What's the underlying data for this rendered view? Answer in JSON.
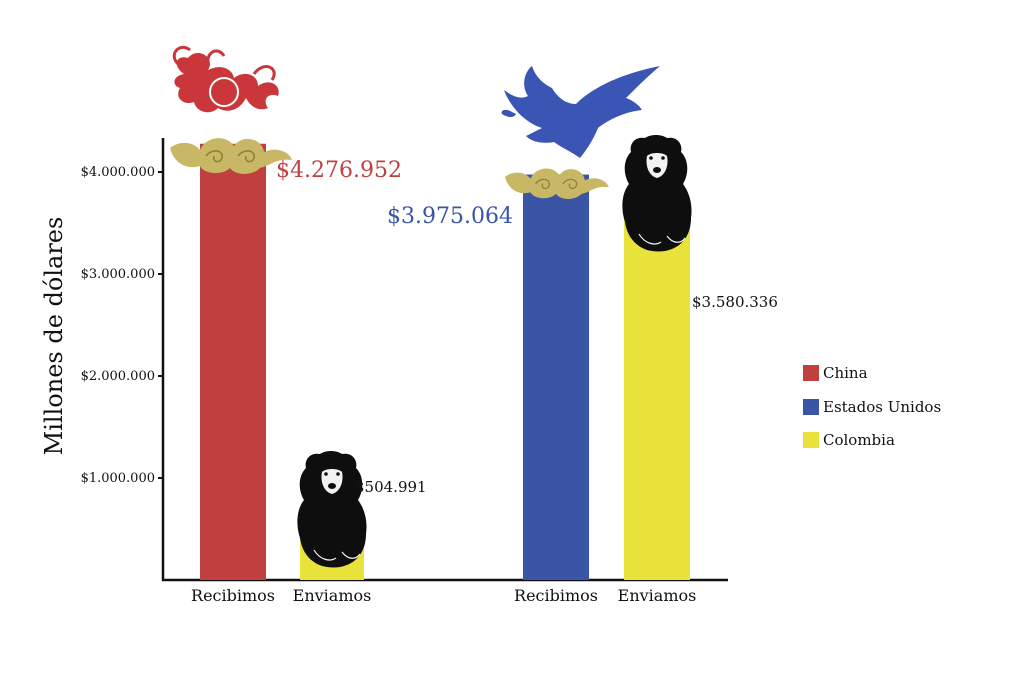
{
  "chart_data": {
    "type": "bar",
    "ylabel": "Millones de dólares",
    "yticks": [
      {
        "value": 1000000,
        "label": "$1.000.000"
      },
      {
        "value": 2000000,
        "label": "$2.000.000"
      },
      {
        "value": 3000000,
        "label": "$3.000.000"
      },
      {
        "value": 4000000,
        "label": "$4.000.000"
      }
    ],
    "ylim": [
      0,
      4276952
    ],
    "bars": [
      {
        "group": 1,
        "category": "Recibimos",
        "series": "China",
        "value": 4276952,
        "label": "$4.276.952",
        "color": "#c0403f"
      },
      {
        "group": 1,
        "category": "Enviamos",
        "series": "Colombia",
        "value": 504991,
        "label": "$504.991",
        "color": "#e8e23a"
      },
      {
        "group": 2,
        "category": "Recibimos",
        "series": "Estados Unidos",
        "value": 3975064,
        "label": "$3.975.064",
        "color": "#3a55a6"
      },
      {
        "group": 2,
        "category": "Enviamos",
        "series": "Colombia",
        "value": 3580336,
        "label": "$3.580.336",
        "color": "#e8e23a"
      }
    ],
    "legend": {
      "placement": "right",
      "items": [
        {
          "name": "China",
          "color": "#c0403f"
        },
        {
          "name": "Estados Unidos",
          "color": "#3a55a6"
        },
        {
          "name": "Colombia",
          "color": "#e8e23a"
        }
      ]
    },
    "illustrations": [
      "dragon-icon",
      "eagle-icon",
      "bear-icon",
      "cloud-icon"
    ],
    "grid": false
  }
}
